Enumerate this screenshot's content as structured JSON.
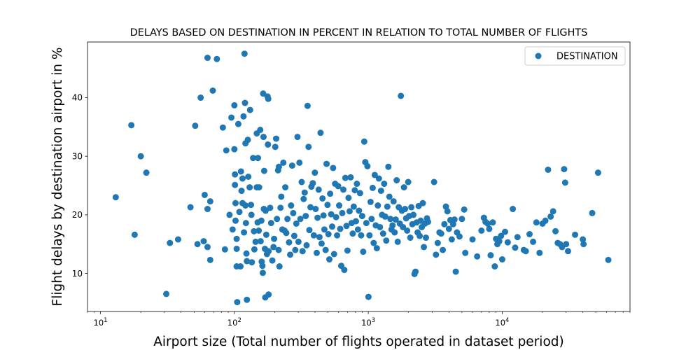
{
  "chart_data": {
    "type": "scatter",
    "title": "DELAYS BASED ON DESTINATION IN PERCENT IN RELATION TO TOTAL NUMBER OF FLIGHTS",
    "xlabel": "Airport size (Total number of flights operated in dataset period)",
    "ylabel": "Flight delays by destination airport in %",
    "xscale": "log",
    "xlim": [
      8,
      90000
    ],
    "ylim": [
      3.5,
      49.5
    ],
    "xticks": [
      {
        "value": 10,
        "base": "10",
        "exp": "1"
      },
      {
        "value": 100,
        "base": "10",
        "exp": "2"
      },
      {
        "value": 1000,
        "base": "10",
        "exp": "3"
      },
      {
        "value": 10000,
        "base": "10",
        "exp": "4"
      }
    ],
    "yticks": [
      10,
      20,
      30,
      40
    ],
    "grid": false,
    "legend": {
      "position": "top-right",
      "entries": [
        "DESTINATION"
      ]
    },
    "series": [
      {
        "name": "DESTINATION",
        "color": "#1f77b4",
        "points": [
          [
            13,
            23.0
          ],
          [
            17,
            35.3
          ],
          [
            18,
            16.6
          ],
          [
            20,
            30.0
          ],
          [
            22,
            27.2
          ],
          [
            31,
            6.5
          ],
          [
            33,
            15.2
          ],
          [
            38,
            15.8
          ],
          [
            47,
            21.3
          ],
          [
            51,
            35.2
          ],
          [
            53,
            15.0
          ],
          [
            56,
            40.0
          ],
          [
            59,
            15.5
          ],
          [
            60,
            23.4
          ],
          [
            63,
            46.8
          ],
          [
            63,
            21.0
          ],
          [
            63,
            14.5
          ],
          [
            66,
            22.3
          ],
          [
            66,
            12.3
          ],
          [
            69,
            41.2
          ],
          [
            74,
            46.6
          ],
          [
            82,
            34.9
          ],
          [
            85,
            14.1
          ],
          [
            87,
            31.0
          ],
          [
            92,
            20.0
          ],
          [
            95,
            36.6
          ],
          [
            97,
            17.5
          ],
          [
            100,
            38.7
          ],
          [
            100,
            31.2
          ],
          [
            101,
            26.9
          ],
          [
            101,
            25.1
          ],
          [
            102,
            22.0
          ],
          [
            102,
            19.0
          ],
          [
            104,
            15.9
          ],
          [
            104,
            14.2
          ],
          [
            104,
            11.2
          ],
          [
            105,
            5.1
          ],
          [
            107,
            35.5
          ],
          [
            109,
            20.5
          ],
          [
            111,
            11.2
          ],
          [
            112,
            27.4
          ],
          [
            113,
            24.1
          ],
          [
            115,
            26.2
          ],
          [
            115,
            22.0
          ],
          [
            117,
            36.8
          ],
          [
            118,
            17.0
          ],
          [
            119,
            47.5
          ],
          [
            120,
            39.1
          ],
          [
            121,
            32.2
          ],
          [
            121,
            21.6
          ],
          [
            122,
            18.6
          ],
          [
            123,
            13.4
          ],
          [
            124,
            12.1
          ],
          [
            124,
            5.5
          ],
          [
            126,
            32.8
          ],
          [
            127,
            26.5
          ],
          [
            130,
            24.7
          ],
          [
            131,
            37.9
          ],
          [
            133,
            21.7
          ],
          [
            134,
            20.0
          ],
          [
            135,
            11.9
          ],
          [
            138,
            29.7
          ],
          [
            140,
            17.2
          ],
          [
            141,
            14.1
          ],
          [
            144,
            15.4
          ],
          [
            147,
            33.9
          ],
          [
            147,
            24.7
          ],
          [
            149,
            18.7
          ],
          [
            150,
            29.7
          ],
          [
            152,
            17.3
          ],
          [
            153,
            24.7
          ],
          [
            156,
            34.5
          ],
          [
            157,
            15.5
          ],
          [
            159,
            19.0
          ],
          [
            160,
            12.0
          ],
          [
            162,
            11.3
          ],
          [
            163,
            10.1
          ],
          [
            164,
            40.7
          ],
          [
            165,
            33.3
          ],
          [
            166,
            21.0
          ],
          [
            167,
            27.5
          ],
          [
            169,
            14.2
          ],
          [
            170,
            5.9
          ],
          [
            171,
            20.7
          ],
          [
            173,
            16.6
          ],
          [
            175,
            13.3
          ],
          [
            177,
            40.2
          ],
          [
            178,
            32.0
          ],
          [
            179,
            39.8
          ],
          [
            180,
            6.4
          ],
          [
            180,
            13.8
          ],
          [
            185,
            21.2
          ],
          [
            188,
            18.6
          ],
          [
            192,
            12.2
          ],
          [
            196,
            14.5
          ],
          [
            198,
            15.9
          ],
          [
            202,
            31.6
          ],
          [
            205,
            33.0
          ],
          [
            208,
            19.3
          ],
          [
            212,
            27.6
          ],
          [
            214,
            14.0
          ],
          [
            215,
            28.2
          ],
          [
            217,
            11.2
          ],
          [
            221,
            21.2
          ],
          [
            224,
            23.1
          ],
          [
            228,
            17.5
          ],
          [
            232,
            28.9
          ],
          [
            237,
            17.3
          ],
          [
            240,
            24.7
          ],
          [
            244,
            16.9
          ],
          [
            249,
            19.3
          ],
          [
            256,
            15.3
          ],
          [
            261,
            13.2
          ],
          [
            265,
            21.6
          ],
          [
            270,
            28.4
          ],
          [
            275,
            20.3
          ],
          [
            280,
            16.4
          ],
          [
            285,
            14.0
          ],
          [
            290,
            18.5
          ],
          [
            296,
            33.3
          ],
          [
            301,
            15.4
          ],
          [
            306,
            28.9
          ],
          [
            311,
            19.3
          ],
          [
            318,
            25.6
          ],
          [
            323,
            13.8
          ],
          [
            329,
            22.7
          ],
          [
            335,
            23.8
          ],
          [
            341,
            19.8
          ],
          [
            346,
            14.8
          ],
          [
            352,
            38.6
          ],
          [
            358,
            31.6
          ],
          [
            363,
            17.4
          ],
          [
            370,
            21.3
          ],
          [
            376,
            24.8
          ],
          [
            385,
            25.4
          ],
          [
            392,
            16.5
          ],
          [
            399,
            27.2
          ],
          [
            404,
            21.0
          ],
          [
            412,
            13.5
          ],
          [
            418,
            19.5
          ],
          [
            426,
            24.3
          ],
          [
            432,
            16.2
          ],
          [
            440,
            34.0
          ],
          [
            448,
            15.1
          ],
          [
            455,
            22.8
          ],
          [
            463,
            19.9
          ],
          [
            470,
            17.5
          ],
          [
            480,
            14.0
          ],
          [
            488,
            28.7
          ],
          [
            496,
            21.7
          ],
          [
            504,
            16.7
          ],
          [
            512,
            12.4
          ],
          [
            519,
            23.6
          ],
          [
            528,
            20.1
          ],
          [
            537,
            18.0
          ],
          [
            546,
            28.0
          ],
          [
            555,
            13.3
          ],
          [
            565,
            25.3
          ],
          [
            575,
            19.6
          ],
          [
            585,
            16.5
          ],
          [
            596,
            24.9
          ],
          [
            606,
            21.6
          ],
          [
            617,
            17.6
          ],
          [
            628,
            11.3
          ],
          [
            639,
            20.3
          ],
          [
            651,
            24.3
          ],
          [
            662,
            10.6
          ],
          [
            674,
            26.3
          ],
          [
            687,
            18.1
          ],
          [
            699,
            13.9
          ],
          [
            712,
            22.9
          ],
          [
            725,
            20.6
          ],
          [
            738,
            26.4
          ],
          [
            751,
            18.6
          ],
          [
            765,
            16.8
          ],
          [
            779,
            21.4
          ],
          [
            793,
            24.2
          ],
          [
            808,
            18.9
          ],
          [
            822,
            25.3
          ],
          [
            837,
            17.5
          ],
          [
            852,
            20.7
          ],
          [
            868,
            23.7
          ],
          [
            884,
            16.5
          ],
          [
            900,
            19.8
          ],
          [
            916,
            13.7
          ],
          [
            933,
            32.5
          ],
          [
            950,
            29.0
          ],
          [
            967,
            18.6
          ],
          [
            985,
            28.3
          ],
          [
            1003,
            6.0
          ],
          [
            1021,
            16.5
          ],
          [
            1040,
            22.2
          ],
          [
            1058,
            19.3
          ],
          [
            1078,
            24.6
          ],
          [
            1097,
            15.2
          ],
          [
            1117,
            26.8
          ],
          [
            1137,
            18.2
          ],
          [
            1158,
            14.3
          ],
          [
            1179,
            21.6
          ],
          [
            1200,
            26.2
          ],
          [
            1222,
            17.9
          ],
          [
            1245,
            24.1
          ],
          [
            1267,
            20.0
          ],
          [
            1290,
            16.8
          ],
          [
            1314,
            25.3
          ],
          [
            1338,
            19.7
          ],
          [
            1362,
            15.6
          ],
          [
            1387,
            21.4
          ],
          [
            1412,
            28.2
          ],
          [
            1437,
            23.1
          ],
          [
            1463,
            19.3
          ],
          [
            1490,
            17.5
          ],
          [
            1517,
            18.2
          ],
          [
            1544,
            22.3
          ],
          [
            1572,
            17.0
          ],
          [
            1601,
            19.2
          ],
          [
            1629,
            25.9
          ],
          [
            1659,
            15.4
          ],
          [
            1689,
            21.3
          ],
          [
            1720,
            18.5
          ],
          [
            1751,
            40.3
          ],
          [
            1783,
            20.7
          ],
          [
            1815,
            17.9
          ],
          [
            1848,
            24.7
          ],
          [
            1881,
            21.0
          ],
          [
            1916,
            19.4
          ],
          [
            1950,
            17.3
          ],
          [
            1986,
            25.6
          ],
          [
            2022,
            19.8
          ],
          [
            2058,
            16.1
          ],
          [
            2096,
            21.3
          ],
          [
            2134,
            18.4
          ],
          [
            2172,
            20.0
          ],
          [
            2212,
            9.9
          ],
          [
            2252,
            10.3
          ],
          [
            2293,
            18.7
          ],
          [
            2334,
            17.0
          ],
          [
            2376,
            21.5
          ],
          [
            2419,
            16.4
          ],
          [
            2463,
            19.0
          ],
          [
            2508,
            17.9
          ],
          [
            2553,
            22.0
          ],
          [
            2600,
            14.5
          ],
          [
            2646,
            18.5
          ],
          [
            2694,
            16.1
          ],
          [
            2743,
            19.4
          ],
          [
            2793,
            18.8
          ],
          [
            3100,
            25.6
          ],
          [
            3200,
            13.2
          ],
          [
            3300,
            15.2
          ],
          [
            3400,
            17.0
          ],
          [
            3500,
            16.8
          ],
          [
            3600,
            14.0
          ],
          [
            3700,
            18.4
          ],
          [
            3800,
            21.4
          ],
          [
            3900,
            20.6
          ],
          [
            4000,
            17.6
          ],
          [
            4100,
            19.1
          ],
          [
            4200,
            15.8
          ],
          [
            4300,
            18.4
          ],
          [
            4400,
            19.2
          ],
          [
            4500,
            10.3
          ],
          [
            4600,
            17.0
          ],
          [
            4800,
            16.3
          ],
          [
            5000,
            19.3
          ],
          [
            5200,
            20.9
          ],
          [
            5300,
            13.5
          ],
          [
            6000,
            15.8
          ],
          [
            6500,
            12.9
          ],
          [
            7000,
            17.3
          ],
          [
            7300,
            19.5
          ],
          [
            7500,
            18.8
          ],
          [
            7800,
            18.5
          ],
          [
            8000,
            17.6
          ],
          [
            8200,
            13.1
          ],
          [
            8500,
            18.7
          ],
          [
            8800,
            11.2
          ],
          [
            9000,
            15.9
          ],
          [
            9200,
            15.0
          ],
          [
            9500,
            15.5
          ],
          [
            9800,
            16.4
          ],
          [
            10000,
            12.4
          ],
          [
            10500,
            17.1
          ],
          [
            11000,
            15.3
          ],
          [
            12000,
            21.0
          ],
          [
            12500,
            14.4
          ],
          [
            13000,
            16.2
          ],
          [
            14500,
            14.0
          ],
          [
            15000,
            13.8
          ],
          [
            16000,
            16.7
          ],
          [
            17000,
            15.4
          ],
          [
            18000,
            18.7
          ],
          [
            19000,
            13.5
          ],
          [
            20000,
            18.5
          ],
          [
            21000,
            19.0
          ],
          [
            22000,
            27.7
          ],
          [
            23000,
            19.7
          ],
          [
            24000,
            20.6
          ],
          [
            25000,
            17.2
          ],
          [
            26000,
            15.2
          ],
          [
            27000,
            15.0
          ],
          [
            28000,
            14.5
          ],
          [
            29000,
            27.8
          ],
          [
            29500,
            25.5
          ],
          [
            30000,
            15.0
          ],
          [
            31000,
            13.8
          ],
          [
            35000,
            16.6
          ],
          [
            40000,
            15.8
          ],
          [
            40500,
            15.0
          ],
          [
            47000,
            20.3
          ],
          [
            52000,
            27.2
          ],
          [
            62000,
            12.3
          ]
        ]
      }
    ]
  }
}
